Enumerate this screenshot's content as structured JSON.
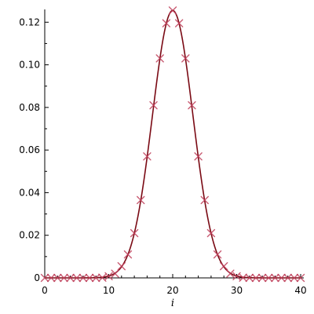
{
  "chart_data": {
    "type": "scatter",
    "title": "",
    "xlabel": "i",
    "ylabel": "",
    "xlim": [
      0,
      40
    ],
    "ylim": [
      0,
      0.126
    ],
    "x_ticks": [
      0,
      10,
      20,
      30,
      40
    ],
    "x_tick_labels": [
      "0",
      "10",
      "20",
      "30",
      "40"
    ],
    "y_ticks": [
      0,
      0.02,
      0.04,
      0.06,
      0.08,
      0.1,
      0.12
    ],
    "y_tick_labels": [
      "0",
      "0.02",
      "0.04",
      "0.06",
      "0.08",
      "0.10",
      "0.12"
    ],
    "grid": false,
    "legend": "none",
    "series": [
      {
        "kind": "markers",
        "marker": "x",
        "color": "#c0405a",
        "x": [
          0,
          1,
          2,
          3,
          4,
          5,
          6,
          7,
          8,
          9,
          10,
          11,
          12,
          13,
          14,
          15,
          16,
          17,
          18,
          19,
          20,
          21,
          22,
          23,
          24,
          25,
          26,
          27,
          28,
          29,
          30,
          31,
          32,
          33,
          34,
          35,
          36,
          37,
          38,
          39,
          40
        ],
        "y": [
          0,
          0,
          0,
          0,
          0,
          0,
          0,
          0,
          0,
          0.0001,
          0.0008,
          0.002,
          0.0055,
          0.011,
          0.021,
          0.0365,
          0.057,
          0.081,
          0.103,
          0.1195,
          0.1255,
          0.1195,
          0.103,
          0.081,
          0.057,
          0.0365,
          0.021,
          0.011,
          0.0055,
          0.002,
          0.0008,
          0.0001,
          0,
          0,
          0,
          0,
          0,
          0,
          0,
          0,
          0
        ]
      },
      {
        "kind": "line",
        "color": "#7a0a14",
        "mean": 20,
        "sd": 3.17,
        "peak": 0.1255
      }
    ]
  }
}
